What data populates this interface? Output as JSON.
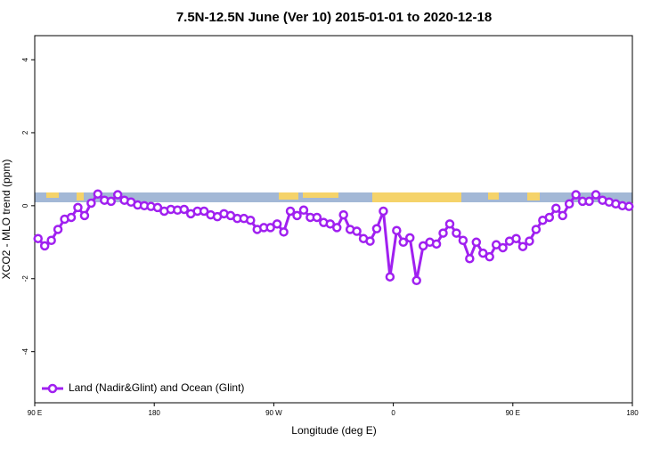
{
  "chart_data": {
    "type": "line",
    "title": "7.5N-12.5N June (Ver 10)   2015-01-01 to 2020-12-18",
    "x_label": "Longitude (deg E)",
    "y_label": "XCO2 - MLO trend (ppm)",
    "x": [
      92.5,
      97.5,
      102.5,
      107.5,
      112.5,
      117.5,
      122.5,
      127.5,
      132.5,
      137.5,
      142.5,
      147.5,
      152.5,
      157.5,
      162.5,
      167.5,
      172.5,
      177.5,
      182.5,
      187.5,
      192.5,
      197.5,
      202.5,
      207.5,
      212.5,
      217.5,
      222.5,
      227.5,
      232.5,
      237.5,
      242.5,
      247.5,
      252.5,
      257.5,
      262.5,
      267.5,
      272.5,
      277.5,
      282.5,
      287.5,
      292.5,
      297.5,
      302.5,
      307.5,
      312.5,
      317.5,
      322.5,
      327.5,
      332.5,
      337.5,
      342.5,
      347.5,
      352.5,
      357.5,
      362.5,
      367.5,
      372.5,
      377.5,
      382.5,
      387.5,
      392.5,
      397.5,
      402.5,
      407.5,
      412.5,
      417.5,
      422.5,
      427.5,
      432.5,
      437.5,
      442.5,
      447.5,
      452.5,
      457.5,
      462.5,
      467.5,
      472.5,
      477.5,
      482.5,
      487.5,
      492.5,
      497.5,
      502.5,
      507.5,
      512.5,
      517.5,
      522.5,
      527.5,
      532.5,
      537.5
    ],
    "series": [
      {
        "name": "Land (Nadir&Glint) and Ocean (Glint)",
        "color": "#a020f0",
        "values": [
          -0.9,
          -1.1,
          -0.95,
          -0.65,
          -0.37,
          -0.32,
          -0.05,
          -0.27,
          0.07,
          0.32,
          0.15,
          0.12,
          0.3,
          0.15,
          0.1,
          0.02,
          0,
          -0.02,
          -0.05,
          -0.15,
          -0.1,
          -0.12,
          -0.1,
          -0.22,
          -0.15,
          -0.15,
          -0.25,
          -0.3,
          -0.22,
          -0.27,
          -0.35,
          -0.35,
          -0.4,
          -0.65,
          -0.6,
          -0.6,
          -0.5,
          -0.72,
          -0.15,
          -0.27,
          -0.12,
          -0.32,
          -0.32,
          -0.46,
          -0.5,
          -0.6,
          -0.25,
          -0.65,
          -0.7,
          -0.9,
          -0.97,
          -0.63,
          -0.15,
          -1.95,
          -0.68,
          -1.0,
          -0.88,
          -2.05,
          -1.1,
          -1.0,
          -1.05,
          -0.75,
          -0.5,
          -0.75,
          -0.95,
          -1.45,
          -1.0,
          -1.3,
          -1.4,
          -1.07,
          -1.15,
          -0.97,
          -0.9,
          -1.12,
          -0.97,
          -0.65,
          -0.4,
          -0.32,
          -0.07,
          -0.27,
          0.05,
          0.3,
          0.12,
          0.12,
          0.3,
          0.15,
          0.1,
          0.05,
          0,
          -0.02
        ]
      }
    ],
    "xlim": [
      90,
      540
    ],
    "xticks": [
      {
        "value": 90,
        "label": "90 E"
      },
      180,
      {
        "value": 270,
        "label": "90 W"
      },
      {
        "value": 360,
        "label": "0"
      },
      {
        "value": 450,
        "label": "90 E"
      },
      {
        "value": 540,
        "label": "180"
      }
    ],
    "ylim": [
      -5.4,
      4.66
    ],
    "yticks": [
      -4,
      -2,
      0,
      2,
      4
    ],
    "legend": "bottom-left"
  }
}
